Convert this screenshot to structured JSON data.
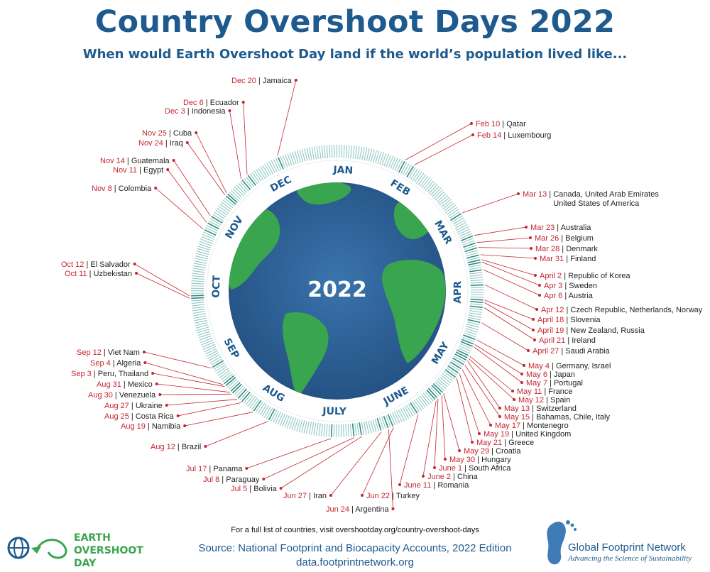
{
  "title": "Country Overshoot Days 2022",
  "subtitle": "When would Earth Overshoot Day land if the world’s population lived like...",
  "center_label": "2022",
  "months": [
    "JAN",
    "FEB",
    "MAR",
    "APR",
    "MAY",
    "JUNE",
    "JULY",
    "AUG",
    "SEP",
    "OCT",
    "NOV",
    "DEC"
  ],
  "footer": {
    "note": "For a full list of countries, visit overshootday.org/country-overshoot-days",
    "source": "Source: National Footprint and Biocapacity Accounts, 2022 Edition",
    "url": "data.footprintnetwork.org"
  },
  "logos": {
    "left": [
      "EARTH",
      "OVERSHOOT",
      "DAY"
    ],
    "right_name": "Global Footprint Network",
    "right_tagline": "Advancing the Science of Sustainability"
  },
  "colors": {
    "title": "#1e5a8e",
    "date": "#c4262e",
    "ring": "#8fc7c3",
    "ocean": "#2b5f95",
    "land": "#3aa54f"
  },
  "chart_data": {
    "type": "radial-timeline",
    "year": 2022,
    "entries": [
      {
        "date": "Feb 10",
        "country": "Qatar",
        "doy": 41
      },
      {
        "date": "Feb 14",
        "country": "Luxembourg",
        "doy": 45
      },
      {
        "date": "Mar 13",
        "country": "Canada, United Arab Emirates",
        "country2": "United States of America",
        "doy": 72
      },
      {
        "date": "Mar 23",
        "country": "Australia",
        "doy": 82
      },
      {
        "date": "Mar 26",
        "country": "Belgium",
        "doy": 85
      },
      {
        "date": "Mar 28",
        "country": "Denmark",
        "doy": 87
      },
      {
        "date": "Mar 31",
        "country": "Finland",
        "doy": 90
      },
      {
        "date": "April 2",
        "country": "Republic of Korea",
        "doy": 92
      },
      {
        "date": "Apr 3",
        "country": "Sweden",
        "doy": 93
      },
      {
        "date": "Apr 6",
        "country": "Austria",
        "doy": 96
      },
      {
        "date": "Apr 12",
        "country": "Czech Republic, Netherlands, Norway",
        "doy": 102
      },
      {
        "date": "April 18",
        "country": "Slovenia",
        "doy": 108
      },
      {
        "date": "April 19",
        "country": "New Zealand, Russia",
        "doy": 109
      },
      {
        "date": "April 21",
        "country": "Ireland",
        "doy": 111
      },
      {
        "date": "April 27",
        "country": "Saudi Arabia",
        "doy": 117
      },
      {
        "date": "May 4",
        "country": "Germany, Israel",
        "doy": 124
      },
      {
        "date": "May 6",
        "country": "Japan",
        "doy": 126
      },
      {
        "date": "May 7",
        "country": "Portugal",
        "doy": 127
      },
      {
        "date": "May 11",
        "country": "France",
        "doy": 131
      },
      {
        "date": "May 12",
        "country": "Spain",
        "doy": 132
      },
      {
        "date": "May 13",
        "country": "Switzerland",
        "doy": 133
      },
      {
        "date": "May 15",
        "country": "Bahamas, Chile, Italy",
        "doy": 135
      },
      {
        "date": "May 17",
        "country": "Montenegro",
        "doy": 137
      },
      {
        "date": "May 19",
        "country": "United Kingdom",
        "doy": 139
      },
      {
        "date": "May 21",
        "country": "Greece",
        "doy": 141
      },
      {
        "date": "May 29",
        "country": "Croatia",
        "doy": 149
      },
      {
        "date": "May 30",
        "country": "Hungary",
        "doy": 150
      },
      {
        "date": "June 1",
        "country": "South Africa",
        "doy": 152
      },
      {
        "date": "June 2",
        "country": "China",
        "doy": 153
      },
      {
        "date": "June 11",
        "country": "Romania",
        "doy": 162
      },
      {
        "date": "Jun 22",
        "country": "Turkey",
        "doy": 173
      },
      {
        "date": "Jun 24",
        "country": "Argentina",
        "doy": 175
      },
      {
        "date": "Jun 27",
        "country": "Iran",
        "doy": 178
      },
      {
        "date": "Jul 5",
        "country": "Bolivia",
        "doy": 186
      },
      {
        "date": "Jul 8",
        "country": "Paraguay",
        "doy": 189
      },
      {
        "date": "Jul 17",
        "country": "Panama",
        "doy": 198
      },
      {
        "date": "Aug 12",
        "country": "Brazil",
        "doy": 224
      },
      {
        "date": "Aug 19",
        "country": "Namibia",
        "doy": 231
      },
      {
        "date": "Aug 25",
        "country": "Costa Rica",
        "doy": 237
      },
      {
        "date": "Aug 27",
        "country": "Ukraine",
        "doy": 239
      },
      {
        "date": "Aug 30",
        "country": "Venezuela",
        "doy": 242
      },
      {
        "date": "Aug 31",
        "country": "Mexico",
        "doy": 243
      },
      {
        "date": "Sep 3",
        "country": "Peru, Thailand",
        "doy": 246
      },
      {
        "date": "Sep 4",
        "country": "Algeria",
        "doy": 247
      },
      {
        "date": "Sep 12",
        "country": "Viet Nam",
        "doy": 255
      },
      {
        "date": "Oct 11",
        "country": "Uzbekistan",
        "doy": 284
      },
      {
        "date": "Oct 12",
        "country": "El Salvador",
        "doy": 285
      },
      {
        "date": "Nov 8",
        "country": "Colombia",
        "doy": 312
      },
      {
        "date": "Nov 11",
        "country": "Egypt",
        "doy": 315
      },
      {
        "date": "Nov 14",
        "country": "Guatemala",
        "doy": 318
      },
      {
        "date": "Nov 24",
        "country": "Iraq",
        "doy": 328
      },
      {
        "date": "Nov 25",
        "country": "Cuba",
        "doy": 329
      },
      {
        "date": "Dec 3",
        "country": "Indonesia",
        "doy": 337
      },
      {
        "date": "Dec 6",
        "country": "Ecuador",
        "doy": 340
      },
      {
        "date": "Dec 20",
        "country": "Jamaica",
        "doy": 354
      }
    ]
  }
}
